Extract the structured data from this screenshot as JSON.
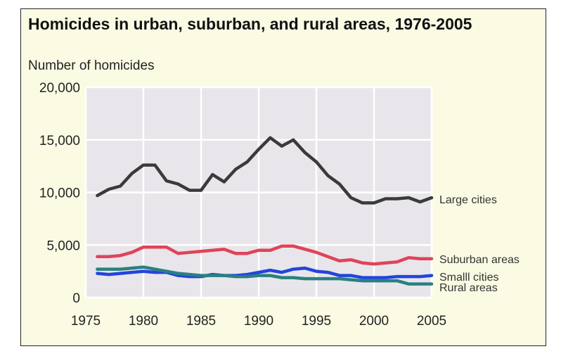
{
  "chart_data": {
    "type": "line",
    "title": "Homicides in urban, suburban, and rural areas, 1976-2005",
    "ylabel": "Number of homicides",
    "xlabel": "",
    "xlim": [
      1975,
      2005
    ],
    "ylim": [
      0,
      20000
    ],
    "xticks": [
      1975,
      1980,
      1985,
      1990,
      1995,
      2000,
      2005
    ],
    "yticks": [
      0,
      5000,
      10000,
      15000,
      20000
    ],
    "xtick_labels": [
      "1975",
      "1980",
      "1985",
      "1990",
      "1995",
      "2000",
      "2005"
    ],
    "ytick_labels": [
      "0",
      "5,000",
      "10,000",
      "15,000",
      "20,000"
    ],
    "grid": true,
    "legend": "end-of-line labels",
    "x": [
      1976,
      1977,
      1978,
      1979,
      1980,
      1981,
      1982,
      1983,
      1984,
      1985,
      1986,
      1987,
      1988,
      1989,
      1990,
      1991,
      1992,
      1993,
      1994,
      1995,
      1996,
      1997,
      1998,
      1999,
      2000,
      2001,
      2002,
      2003,
      2004,
      2005
    ],
    "series": [
      {
        "name": "Large cities",
        "color": "#3a3a3a",
        "values": [
          9700,
          10300,
          10600,
          11800,
          12600,
          12600,
          11100,
          10800,
          10200,
          10200,
          11700,
          11000,
          12200,
          12900,
          14100,
          15200,
          14400,
          15000,
          13800,
          12900,
          11600,
          10800,
          9500,
          9000,
          9000,
          9400,
          9400,
          9500,
          9100,
          9500
        ]
      },
      {
        "name": "Suburban areas",
        "color": "#e0435a",
        "values": [
          3900,
          3900,
          4000,
          4300,
          4800,
          4800,
          4800,
          4200,
          4300,
          4400,
          4500,
          4600,
          4200,
          4200,
          4500,
          4500,
          4900,
          4900,
          4600,
          4300,
          3900,
          3500,
          3600,
          3300,
          3200,
          3300,
          3400,
          3800,
          3700,
          3700
        ]
      },
      {
        "name": "Smalll cities",
        "color": "#2244dd",
        "values": [
          2300,
          2200,
          2300,
          2400,
          2500,
          2400,
          2400,
          2100,
          2000,
          2000,
          2200,
          2100,
          2100,
          2200,
          2400,
          2600,
          2400,
          2700,
          2800,
          2500,
          2400,
          2100,
          2100,
          1900,
          1900,
          1900,
          2000,
          2000,
          2000,
          2100
        ]
      },
      {
        "name": "Rural areas",
        "color": "#2a8080",
        "values": [
          2700,
          2700,
          2700,
          2800,
          2900,
          2700,
          2500,
          2300,
          2200,
          2100,
          2100,
          2100,
          2000,
          2000,
          2100,
          2100,
          1900,
          1900,
          1800,
          1800,
          1800,
          1800,
          1700,
          1600,
          1600,
          1600,
          1600,
          1300,
          1300,
          1300
        ]
      }
    ]
  }
}
